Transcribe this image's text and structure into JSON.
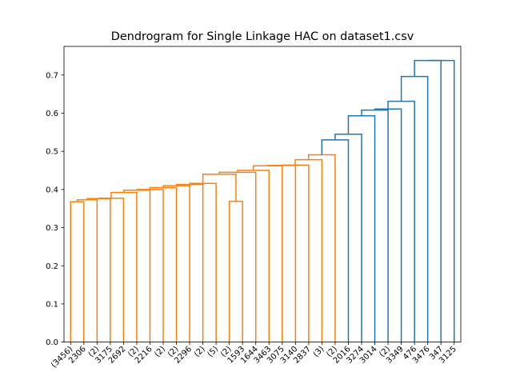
{
  "chart_data": {
    "type": "dendrogram",
    "title": "Dendrogram for Single Linkage HAC on dataset1.csv",
    "xlabel": "",
    "ylabel": "",
    "ylim": [
      0,
      0.775
    ],
    "y_ticks": [
      "0.0",
      "0.1",
      "0.2",
      "0.3",
      "0.4",
      "0.5",
      "0.6",
      "0.7"
    ],
    "leaf_labels": [
      "(3456)",
      "2306",
      "(2)",
      "3175",
      "2692",
      "(2)",
      "2216",
      "(2)",
      "(2)",
      "2296",
      "(2)",
      "(5)",
      "(2)",
      "1593",
      "1644",
      "3463",
      "3075",
      "3140",
      "2837",
      "(3)",
      "(2)",
      "2016",
      "3274",
      "3014",
      "(2)",
      "3349",
      "476",
      "3476",
      "347",
      "3125"
    ],
    "colors": {
      "cluster_1": "#ff7f0e",
      "cluster_2": "#1f77b4"
    },
    "merges": [
      {
        "left": 0,
        "right": 1,
        "height": 0.368,
        "color": "cluster_1"
      },
      {
        "left": 30,
        "right": 2,
        "height": 0.373,
        "color": "cluster_1"
      },
      {
        "left": 31,
        "right": 3,
        "height": 0.376,
        "color": "cluster_1"
      },
      {
        "left": 32,
        "right": 4,
        "height": 0.377,
        "color": "cluster_1"
      },
      {
        "left": 33,
        "right": 5,
        "height": 0.392,
        "color": "cluster_1"
      },
      {
        "left": 34,
        "right": 6,
        "height": 0.398,
        "color": "cluster_1"
      },
      {
        "left": 35,
        "right": 7,
        "height": 0.4,
        "color": "cluster_1"
      },
      {
        "left": 36,
        "right": 8,
        "height": 0.405,
        "color": "cluster_1"
      },
      {
        "left": 37,
        "right": 9,
        "height": 0.41,
        "color": "cluster_1"
      },
      {
        "left": 38,
        "right": 10,
        "height": 0.413,
        "color": "cluster_1"
      },
      {
        "left": 39,
        "right": 11,
        "height": 0.416,
        "color": "cluster_1"
      },
      {
        "left": 12,
        "right": 13,
        "height": 0.369,
        "color": "cluster_1"
      },
      {
        "left": 40,
        "right": 41,
        "height": 0.44,
        "color": "cluster_1"
      },
      {
        "left": 42,
        "right": 14,
        "height": 0.445,
        "color": "cluster_1"
      },
      {
        "left": 43,
        "right": 15,
        "height": 0.45,
        "color": "cluster_1"
      },
      {
        "left": 44,
        "right": 16,
        "height": 0.462,
        "color": "cluster_1"
      },
      {
        "left": 45,
        "right": 17,
        "height": 0.463,
        "color": "cluster_1"
      },
      {
        "left": 46,
        "right": 18,
        "height": 0.464,
        "color": "cluster_1"
      },
      {
        "left": 47,
        "right": 19,
        "height": 0.478,
        "color": "cluster_1"
      },
      {
        "left": 48,
        "right": 20,
        "height": 0.491,
        "color": "cluster_1"
      },
      {
        "left": 49,
        "right": 21,
        "height": 0.53,
        "color": "cluster_2"
      },
      {
        "left": 50,
        "right": 22,
        "height": 0.545,
        "color": "cluster_2"
      },
      {
        "left": 51,
        "right": 23,
        "height": 0.593,
        "color": "cluster_2"
      },
      {
        "left": 52,
        "right": 24,
        "height": 0.608,
        "color": "cluster_2"
      },
      {
        "left": 53,
        "right": 25,
        "height": 0.611,
        "color": "cluster_2"
      },
      {
        "left": 54,
        "right": 26,
        "height": 0.631,
        "color": "cluster_2"
      },
      {
        "left": 55,
        "right": 27,
        "height": 0.696,
        "color": "cluster_2"
      },
      {
        "left": 56,
        "right": 28,
        "height": 0.738,
        "color": "cluster_2"
      },
      {
        "left": 57,
        "right": 29,
        "height": 0.738,
        "color": "cluster_2"
      }
    ]
  }
}
